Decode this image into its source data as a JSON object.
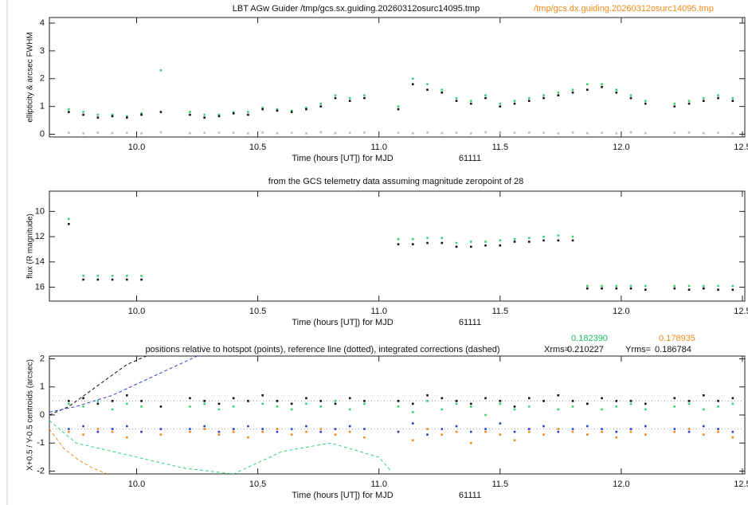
{
  "chart_data": [
    {
      "type": "scatter",
      "title": "LBT AGw Guider  /tmp/gcs.sx.guiding.20260312osurc14095.tmp",
      "title_right": "/tmp/gcs.dx.guiding.20260312osurc14095.tmp",
      "title_right_color": "#f28a1a",
      "xlabel": "Time (hours [UT]) for MJD",
      "mjd": "61111",
      "ylabel": "ellipticity & arcsec FWHM",
      "xlim": [
        9.64,
        12.51
      ],
      "ylim": [
        -0.1,
        4.2
      ],
      "xticks": [
        {
          "value": 10,
          "label": "10.0"
        },
        {
          "value": 10.5,
          "label": "10.5"
        },
        {
          "value": 11,
          "label": "11.0"
        },
        {
          "value": 11.5,
          "label": "11.5"
        },
        {
          "value": 12,
          "label": "12.0"
        },
        {
          "value": 12.5,
          "label": "12.5"
        }
      ],
      "yticks": [
        0,
        1,
        2,
        3,
        4
      ],
      "x": [
        9.72,
        9.78,
        9.84,
        9.9,
        9.96,
        10.02,
        10.1,
        10.22,
        10.28,
        10.34,
        10.4,
        10.46,
        10.52,
        10.58,
        10.64,
        10.7,
        10.76,
        10.82,
        10.88,
        10.94,
        11.08,
        11.14,
        11.2,
        11.26,
        11.32,
        11.38,
        11.44,
        11.5,
        11.56,
        11.62,
        11.68,
        11.74,
        11.8,
        11.86,
        11.92,
        11.98,
        12.04,
        12.1,
        12.22,
        12.28,
        12.34,
        12.4,
        12.46
      ],
      "series": [
        {
          "color": "#bbbbbb",
          "values": [
            0.05,
            0.03,
            0.06,
            0.04,
            0.05,
            0.03,
            0.07,
            0.04,
            0.05,
            0.06,
            0.05,
            0.03,
            0.06,
            0.04,
            0.05,
            0.03,
            0.07,
            0.04,
            0.05,
            0.06,
            0.05,
            0.03,
            0.06,
            0.04,
            0.05,
            0.03,
            0.07,
            0.04,
            0.05,
            0.06,
            0.05,
            0.03,
            0.06,
            0.04,
            0.05,
            0.03,
            0.07,
            0.04,
            0.05,
            0.06,
            0.04,
            0.05,
            0.03
          ]
        },
        {
          "color": "#3ad17a",
          "values": [
            0.9,
            0.8,
            0.7,
            0.7,
            0.65,
            0.75,
            2.3,
            0.8,
            0.7,
            0.7,
            0.8,
            0.8,
            0.95,
            0.9,
            0.85,
            0.95,
            1.1,
            1.4,
            1.3,
            1.4,
            1.0,
            2.0,
            1.8,
            1.6,
            1.3,
            1.2,
            1.4,
            1.1,
            1.2,
            1.3,
            1.4,
            1.5,
            1.6,
            1.8,
            1.8,
            1.6,
            1.4,
            1.2,
            1.1,
            1.2,
            1.3,
            1.4,
            1.3
          ]
        },
        {
          "color": "#111111",
          "values": [
            0.8,
            0.7,
            0.6,
            0.65,
            0.6,
            0.7,
            0.8,
            0.7,
            0.6,
            0.65,
            0.75,
            0.7,
            0.9,
            0.85,
            0.8,
            0.9,
            1.0,
            1.3,
            1.2,
            1.3,
            0.9,
            1.8,
            1.6,
            1.5,
            1.2,
            1.1,
            1.3,
            1.0,
            1.1,
            1.2,
            1.3,
            1.4,
            1.5,
            1.6,
            1.7,
            1.5,
            1.3,
            1.1,
            1.0,
            1.1,
            1.2,
            1.3,
            1.2
          ]
        }
      ]
    },
    {
      "type": "scatter",
      "title": "from the GCS telemetry data assuming magnitude zeropoint of 28",
      "xlabel": "Time (hours [UT]) for MJD",
      "mjd": "61111",
      "ylabel": "flux (R magnitude)",
      "xlim": [
        9.64,
        12.51
      ],
      "ylim": [
        17.1,
        8.4
      ],
      "xticks": [
        {
          "value": 10,
          "label": "10.0"
        },
        {
          "value": 10.5,
          "label": "10.5"
        },
        {
          "value": 11,
          "label": "11.0"
        },
        {
          "value": 11.5,
          "label": "11.5"
        },
        {
          "value": 12,
          "label": "12.0"
        },
        {
          "value": 12.5,
          "label": "12.5"
        }
      ],
      "yticks": [
        10,
        12,
        14,
        16
      ],
      "x": [
        9.72,
        9.78,
        9.84,
        9.9,
        9.96,
        10.02,
        10.1,
        10.22,
        10.28,
        10.34,
        10.4,
        10.46,
        10.52,
        10.58,
        10.64,
        10.7,
        10.76,
        10.82,
        10.88,
        10.94,
        11.08,
        11.14,
        11.2,
        11.26,
        11.32,
        11.38,
        11.44,
        11.5,
        11.56,
        11.62,
        11.68,
        11.74,
        11.8,
        11.86,
        11.92,
        11.98,
        12.04,
        12.1,
        12.22,
        12.28,
        12.34,
        12.4,
        12.46
      ],
      "series": [
        {
          "color": "#3ad17a",
          "values": [
            10.6,
            15.1,
            15.1,
            15.1,
            15.1,
            15.1,
            null,
            null,
            null,
            null,
            null,
            null,
            null,
            null,
            null,
            null,
            null,
            null,
            null,
            null,
            12.2,
            12.2,
            12.1,
            12.1,
            12.5,
            12.4,
            12.4,
            12.3,
            12.2,
            12.1,
            12.0,
            11.9,
            12.0,
            15.9,
            15.9,
            15.9,
            15.9,
            15.9,
            15.9,
            15.9,
            15.9,
            15.9,
            15.9
          ]
        },
        {
          "color": "#111111",
          "values": [
            11.0,
            15.4,
            15.4,
            15.4,
            15.4,
            15.4,
            null,
            null,
            null,
            null,
            null,
            null,
            null,
            null,
            null,
            null,
            null,
            null,
            null,
            null,
            12.6,
            12.6,
            12.5,
            12.5,
            12.8,
            12.8,
            12.7,
            12.7,
            12.4,
            12.4,
            12.3,
            12.3,
            12.3,
            16.1,
            16.1,
            16.1,
            16.1,
            16.2,
            16.1,
            16.2,
            16.1,
            16.2,
            16.2
          ]
        }
      ]
    },
    {
      "type": "scatter",
      "title": "positions relative to hotspot (points),   reference line (dotted),   integrated corrections (dashed)",
      "xrms_label": "Xrms=",
      "xrms": "0.210227",
      "yrms_label": "Yrms=",
      "yrms": "0.186784",
      "xrms_dx": "0.182390",
      "yrms_dx": "0.178935",
      "xlabel": "Time (hours [UT]) for MJD",
      "mjd": "61111",
      "ylabel": "X+0.5 / Y-0.5 centroids (arcsec)",
      "xlim": [
        9.64,
        12.51
      ],
      "ylim": [
        -2.1,
        2.1
      ],
      "xticks": [
        {
          "value": 10,
          "label": "10.0"
        },
        {
          "value": 10.5,
          "label": "10.5"
        },
        {
          "value": 11,
          "label": "11.0"
        },
        {
          "value": 11.5,
          "label": "11.5"
        },
        {
          "value": 12,
          "label": "12.0"
        },
        {
          "value": 12.5,
          "label": "12.5"
        }
      ],
      "yticks": [
        -2,
        -1,
        0,
        1,
        2
      ],
      "reference_lines": [
        0.5,
        -0.5
      ],
      "x": [
        9.72,
        9.78,
        9.84,
        9.9,
        9.96,
        10.02,
        10.1,
        10.22,
        10.28,
        10.34,
        10.4,
        10.46,
        10.52,
        10.58,
        10.64,
        10.7,
        10.76,
        10.82,
        10.88,
        10.94,
        11.08,
        11.14,
        11.2,
        11.26,
        11.32,
        11.38,
        11.44,
        11.5,
        11.56,
        11.62,
        11.68,
        11.74,
        11.8,
        11.86,
        11.92,
        11.98,
        12.04,
        12.1,
        12.22,
        12.28,
        12.34,
        12.4,
        12.46
      ],
      "series": [
        {
          "color": "#3ad17a",
          "values": [
            0.4,
            0.3,
            0.5,
            0.2,
            0.4,
            0.3,
            -0.5,
            0.3,
            0.4,
            0.2,
            0.3,
            0.5,
            0.4,
            0.3,
            0.2,
            0.4,
            0.3,
            0.5,
            0.2,
            0.4,
            0.3,
            0.1,
            0.5,
            0.2,
            0.4,
            0.3,
            0.0,
            0.4,
            0.2,
            0.3,
            0.5,
            0.2,
            0.3,
            0.4,
            0.2,
            0.3,
            0.4,
            0.2,
            0.3,
            0.4,
            0.2,
            0.3,
            0.4
          ]
        },
        {
          "color": "#111111",
          "values": [
            0.5,
            0.6,
            0.4,
            0.5,
            0.7,
            0.5,
            0.3,
            0.6,
            0.5,
            0.4,
            0.6,
            0.5,
            0.7,
            0.5,
            0.4,
            0.6,
            0.5,
            0.4,
            0.6,
            0.5,
            0.5,
            0.4,
            0.7,
            0.6,
            0.5,
            0.4,
            0.6,
            0.5,
            0.3,
            0.6,
            0.5,
            0.7,
            0.5,
            0.4,
            0.6,
            0.5,
            0.5,
            0.4,
            0.6,
            0.5,
            0.7,
            0.5,
            0.6
          ]
        },
        {
          "color": "#f28a1a",
          "values": [
            -0.6,
            -0.7,
            -0.5,
            -0.6,
            -0.8,
            -0.6,
            -0.7,
            -0.6,
            -0.5,
            -0.7,
            -0.6,
            -0.8,
            -0.6,
            -0.5,
            -0.7,
            -0.6,
            -0.5,
            -0.7,
            -0.6,
            -0.8,
            -0.6,
            -0.9,
            -0.5,
            -0.7,
            -0.6,
            -1.0,
            -0.6,
            -0.7,
            -0.9,
            -0.6,
            -0.7,
            -0.5,
            -0.6,
            -0.7,
            -0.6,
            -0.8,
            -0.6,
            -0.7,
            -0.6,
            -0.5,
            -0.7,
            -0.6,
            -0.8
          ]
        },
        {
          "color": "#2f3fc4",
          "values": [
            -0.5,
            -0.4,
            -0.6,
            -0.5,
            -0.4,
            -0.6,
            -0.5,
            -0.5,
            -0.4,
            -0.6,
            -0.5,
            -0.4,
            -0.5,
            -0.6,
            -0.5,
            -0.4,
            -0.6,
            -0.5,
            -0.4,
            -0.5,
            -0.6,
            -0.3,
            -0.7,
            -0.5,
            -0.4,
            -0.6,
            -0.5,
            -0.3,
            -0.6,
            -0.5,
            -0.4,
            -0.6,
            -0.5,
            -0.4,
            -0.5,
            -0.6,
            -0.5,
            -0.4,
            -0.5,
            -0.6,
            -0.4,
            -0.5,
            -0.6
          ]
        },
        {
          "color": "#111111",
          "style": "dashed",
          "x": [
            9.64,
            9.72,
            9.8,
            9.88,
            9.96,
            10.04
          ],
          "values": [
            0.0,
            0.3,
            0.8,
            1.3,
            1.8,
            2.1
          ]
        },
        {
          "color": "#2f3fc4",
          "style": "dashed",
          "x": [
            9.64,
            9.75,
            9.9,
            10.05,
            10.15,
            10.25
          ],
          "values": [
            0.1,
            0.3,
            0.7,
            1.3,
            1.7,
            2.1
          ]
        },
        {
          "color": "#3ad17a",
          "style": "dashed",
          "x": [
            9.64,
            9.75,
            9.9,
            10.05,
            10.2,
            10.4,
            10.6,
            10.8,
            11.0,
            11.05
          ],
          "values": [
            -0.2,
            -1.0,
            -1.3,
            -1.6,
            -1.9,
            -2.1,
            -1.3,
            -1.0,
            -1.5,
            -2.0
          ]
        },
        {
          "color": "#f28a1a",
          "style": "dashed",
          "x": [
            9.64,
            9.7,
            9.76,
            9.82,
            9.88
          ],
          "values": [
            -0.5,
            -1.2,
            -1.6,
            -1.9,
            -2.1
          ]
        }
      ]
    }
  ]
}
